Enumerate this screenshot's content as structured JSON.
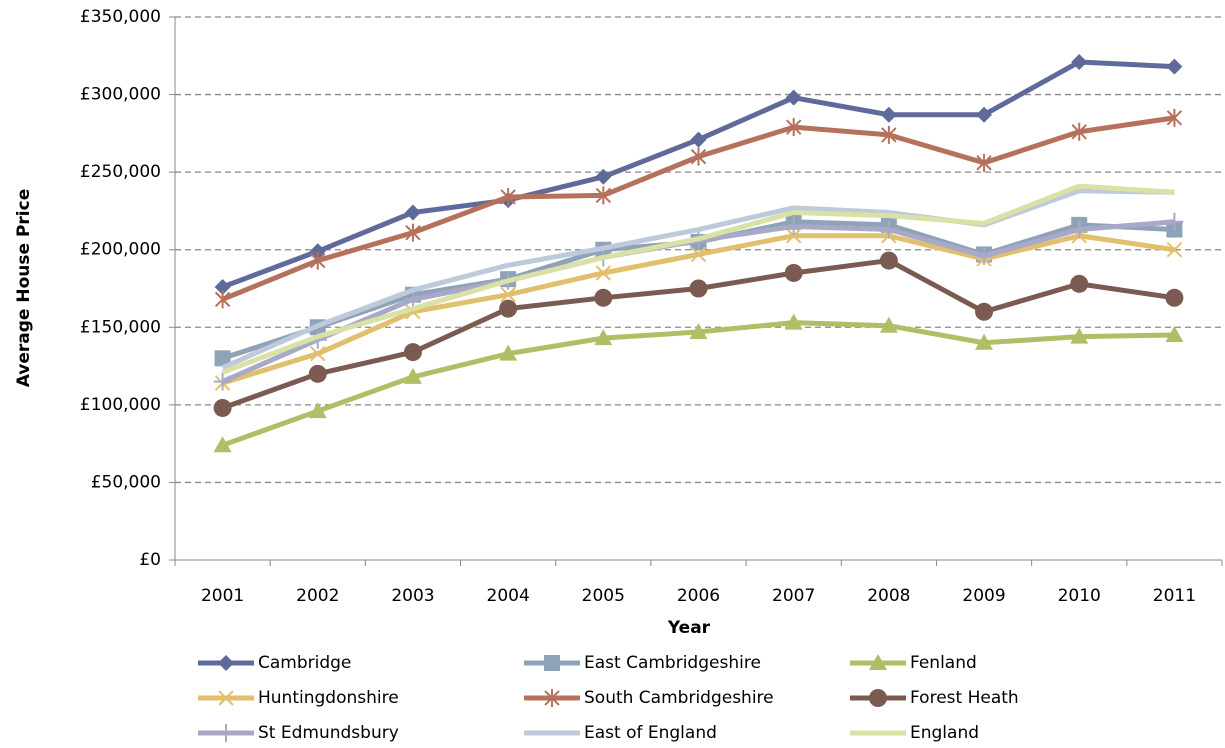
{
  "chart_data": {
    "type": "line",
    "x_label": "Year",
    "y_label": "Average House Price",
    "categories": [
      "2001",
      "2002",
      "2003",
      "2004",
      "2005",
      "2006",
      "2007",
      "2008",
      "2009",
      "2010",
      "2011"
    ],
    "ylim": [
      0,
      350000
    ],
    "yticks": [
      {
        "value": 0,
        "label": "£0"
      },
      {
        "value": 50000,
        "label": "£50,000"
      },
      {
        "value": 100000,
        "label": "£100,000"
      },
      {
        "value": 150000,
        "label": "£150,000"
      },
      {
        "value": 200000,
        "label": "£200,000"
      },
      {
        "value": 250000,
        "label": "£250,000"
      },
      {
        "value": 300000,
        "label": "£300,000"
      },
      {
        "value": 350000,
        "label": "£350,000"
      }
    ],
    "grid": true,
    "series": [
      {
        "name": "Cambridge",
        "color": "#5f6a9a",
        "marker": "diamond",
        "values": [
          176000,
          199000,
          224000,
          232000,
          247000,
          271000,
          298000,
          287000,
          287000,
          321000,
          318000
        ]
      },
      {
        "name": "East Cambridgeshire",
        "color": "#8ea3b8",
        "marker": "square",
        "values": [
          130000,
          150000,
          171000,
          181000,
          200000,
          205000,
          218000,
          216000,
          197000,
          216000,
          213000
        ]
      },
      {
        "name": "Fenland",
        "color": "#aebf66",
        "marker": "triangle",
        "values": [
          74000,
          96000,
          118000,
          133000,
          143000,
          147000,
          153000,
          151000,
          140000,
          144000,
          145000
        ]
      },
      {
        "name": "Huntingdonshire",
        "color": "#e2bf6c",
        "marker": "x",
        "values": [
          114000,
          133000,
          160000,
          171000,
          185000,
          197000,
          209000,
          209000,
          194000,
          209000,
          200000
        ]
      },
      {
        "name": "South Cambridgeshire",
        "color": "#b5715c",
        "marker": "star",
        "values": [
          168000,
          193000,
          211000,
          234000,
          235000,
          260000,
          279000,
          274000,
          256000,
          276000,
          285000
        ]
      },
      {
        "name": "Forest Heath",
        "color": "#7b5b51",
        "marker": "circle",
        "values": [
          98000,
          120000,
          134000,
          162000,
          169000,
          175000,
          185000,
          193000,
          160000,
          178000,
          169000
        ]
      },
      {
        "name": "St Edmundsbury",
        "color": "#a8a9c8",
        "marker": "plus",
        "values": [
          115000,
          142000,
          168000,
          180000,
          195000,
          206000,
          215000,
          213000,
          196000,
          213000,
          218000
        ]
      },
      {
        "name": "East of England",
        "color": "#bccadb",
        "marker": "none",
        "values": [
          124000,
          151000,
          174000,
          190000,
          201000,
          213000,
          227000,
          224000,
          216000,
          238000,
          237000
        ]
      },
      {
        "name": "England",
        "color": "#d9e1a4",
        "marker": "none",
        "values": [
          121000,
          144000,
          162000,
          180000,
          195000,
          207000,
          224000,
          222000,
          217000,
          241000,
          237000
        ]
      }
    ],
    "legend": "bottom"
  }
}
